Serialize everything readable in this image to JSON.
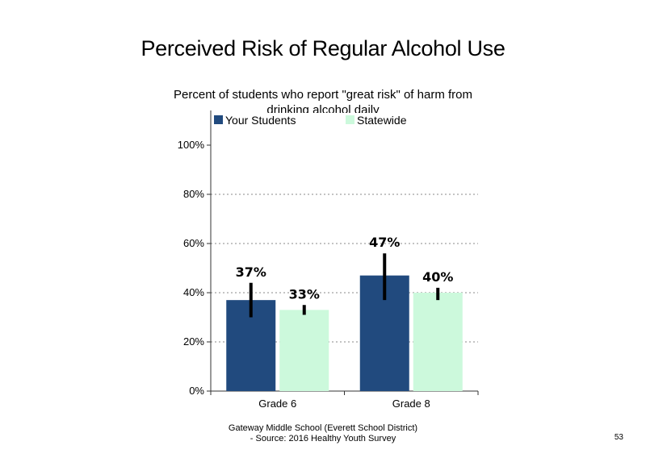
{
  "footer": {
    "line1": "Gateway Middle  School  (Everett School District)",
    "line2": "- Source: 2016 Healthy  Youth Survey"
  },
  "page_number": "53",
  "chart_data": {
    "type": "bar",
    "title": "Perceived Risk of Regular Alcohol Use",
    "subtitle": "Percent of students who report \"great risk\" of harm from drinking alcohol daily",
    "categories": [
      "Grade 6",
      "Grade 8"
    ],
    "series": [
      {
        "name": "Your Students",
        "color": "#214a7e",
        "values": [
          37,
          47
        ],
        "labels": [
          "37%",
          "47%"
        ],
        "error": [
          [
            30,
            44
          ],
          [
            37,
            56
          ]
        ]
      },
      {
        "name": "Statewide",
        "color": "#ccf9dc",
        "values": [
          33,
          40
        ],
        "labels": [
          "33%",
          "40%"
        ],
        "error": [
          [
            31,
            35
          ],
          [
            37,
            42
          ]
        ]
      }
    ],
    "ylim": [
      0,
      100
    ],
    "yticks": [
      0,
      20,
      40,
      60,
      80,
      100
    ],
    "ytick_labels": [
      "0%",
      "20%",
      "40%",
      "60%",
      "80%",
      "100%"
    ],
    "grid": true,
    "legend": "top"
  }
}
